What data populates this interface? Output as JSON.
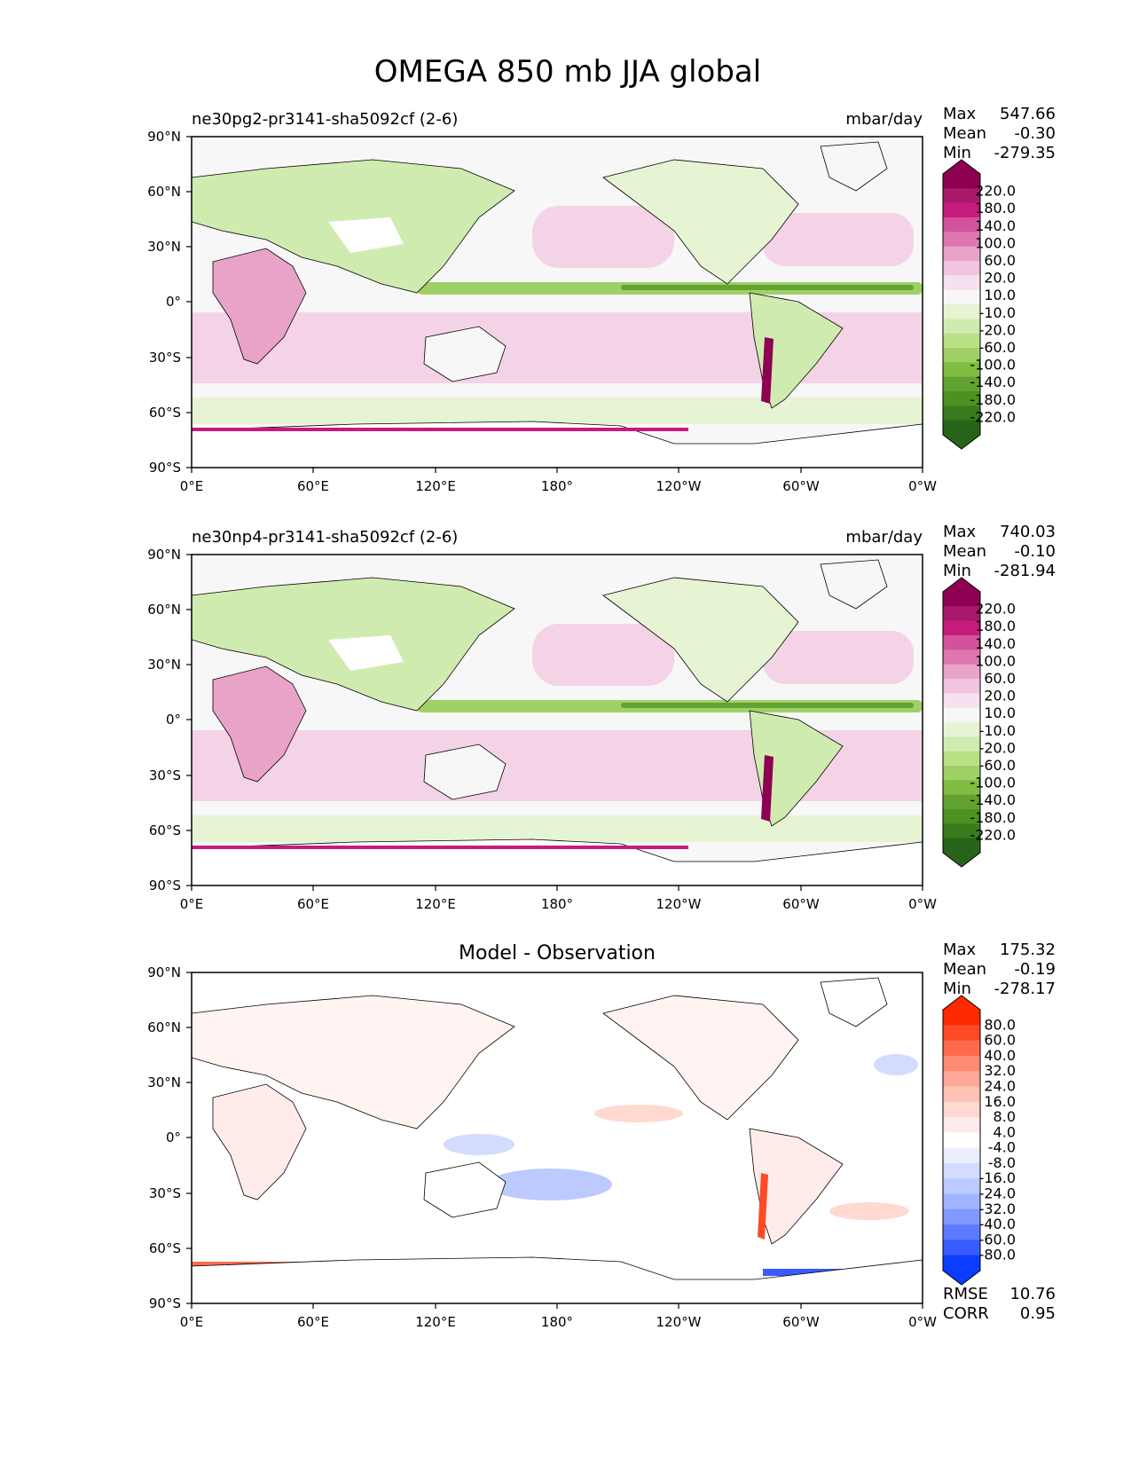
{
  "figure": {
    "title": "OMEGA 850 mb JJA global"
  },
  "panels": [
    {
      "left_title": "ne30pg2-pr3141-sha5092cf (2-6)",
      "center_title": "",
      "units": "mbar/day",
      "stats": {
        "max_label": "Max",
        "max": "547.66",
        "mean_label": "Mean",
        "mean": "-0.30",
        "min_label": "Min",
        "min": "-279.35"
      },
      "colorbar": {
        "labels": [
          "220.0",
          "180.0",
          "140.0",
          "100.0",
          "60.0",
          "20.0",
          "10.0",
          "-10.0",
          "-20.0",
          "-60.0",
          "-100.0",
          "-140.0",
          "-180.0",
          "-220.0"
        ],
        "colors": [
          "#8e0152",
          "#a8196a",
          "#c51b7d",
          "#d2529c",
          "#de77ae",
          "#e9a3c9",
          "#f1c4df",
          "#f7e1ee",
          "#f7f7f7",
          "#e6f4d3",
          "#d0ebb0",
          "#b8e186",
          "#9fd066",
          "#7fbc41",
          "#62a233",
          "#4d9221",
          "#3a7a1d",
          "#276419"
        ],
        "top_color": "#8e0152",
        "bottom_color": "#276419"
      },
      "extra": null
    },
    {
      "left_title": "ne30np4-pr3141-sha5092cf (2-6)",
      "center_title": "",
      "units": "mbar/day",
      "stats": {
        "max_label": "Max",
        "max": "740.03",
        "mean_label": "Mean",
        "mean": "-0.10",
        "min_label": "Min",
        "min": "-281.94"
      },
      "colorbar": {
        "labels": [
          "220.0",
          "180.0",
          "140.0",
          "100.0",
          "60.0",
          "20.0",
          "10.0",
          "-10.0",
          "-20.0",
          "-60.0",
          "-100.0",
          "-140.0",
          "-180.0",
          "-220.0"
        ],
        "colors": [
          "#8e0152",
          "#a8196a",
          "#c51b7d",
          "#d2529c",
          "#de77ae",
          "#e9a3c9",
          "#f1c4df",
          "#f7e1ee",
          "#f7f7f7",
          "#e6f4d3",
          "#d0ebb0",
          "#b8e186",
          "#9fd066",
          "#7fbc41",
          "#62a233",
          "#4d9221",
          "#3a7a1d",
          "#276419"
        ],
        "top_color": "#8e0152",
        "bottom_color": "#276419"
      },
      "extra": null
    },
    {
      "left_title": "",
      "center_title": "Model - Observation",
      "units": "",
      "stats": {
        "max_label": "Max",
        "max": "175.32",
        "mean_label": "Mean",
        "mean": "-0.19",
        "min_label": "Min",
        "min": "-278.17"
      },
      "colorbar": {
        "labels": [
          "80.0",
          "60.0",
          "40.0",
          "32.0",
          "24.0",
          "16.0",
          "8.0",
          "4.0",
          "-4.0",
          "-8.0",
          "-16.0",
          "-24.0",
          "-32.0",
          "-40.0",
          "-60.0",
          "-80.0"
        ],
        "colors": [
          "#ff2a00",
          "#ff4a26",
          "#ff6a4d",
          "#ff8a73",
          "#ffa899",
          "#ffc2b5",
          "#ffd9d0",
          "#ffecea",
          "#ffffff",
          "#eaeeff",
          "#d3dcff",
          "#bccaff",
          "#a2b4ff",
          "#8099ff",
          "#5c7aff",
          "#385cff",
          "#0a3dff"
        ],
        "top_color": "#ff2a00",
        "bottom_color": "#0a3dff"
      },
      "extra": {
        "rmse_label": "RMSE",
        "rmse": "10.76",
        "corr_label": "CORR",
        "corr": "0.95"
      }
    }
  ],
  "axes": {
    "x_ticks": [
      "0°E",
      "60°E",
      "120°E",
      "180°",
      "120°W",
      "60°W",
      "0°W"
    ],
    "y_ticks": [
      "90°N",
      "60°N",
      "30°N",
      "0°",
      "30°S",
      "60°S",
      "90°S"
    ]
  }
}
